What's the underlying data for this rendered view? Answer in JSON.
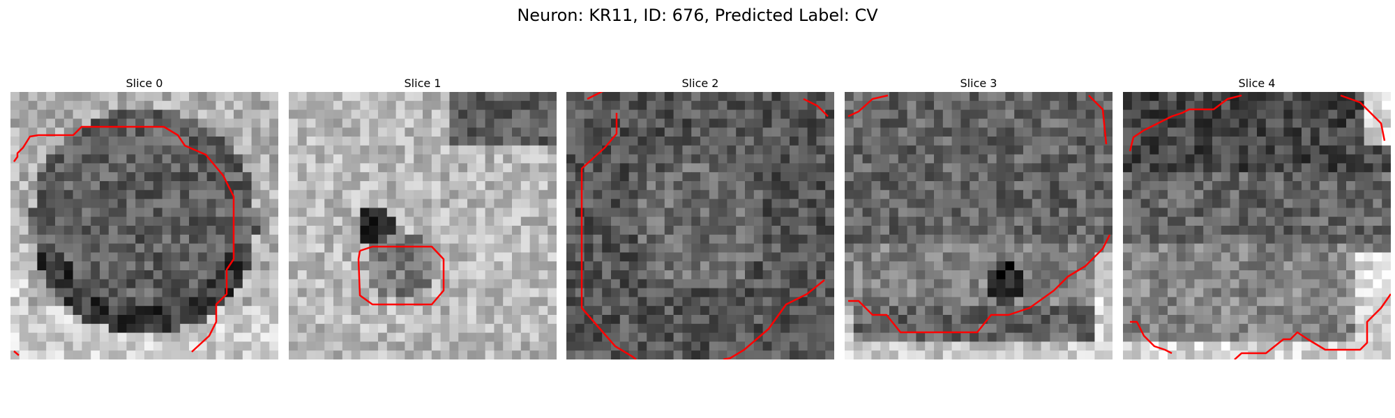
{
  "figure": {
    "title": "Neuron: KR11, ID: 676, Predicted Label: CV"
  },
  "slices": [
    {
      "title": "Slice 0"
    },
    {
      "title": "Slice 1"
    },
    {
      "title": "Slice 2"
    },
    {
      "title": "Slice 3"
    },
    {
      "title": "Slice 4"
    }
  ],
  "colors": {
    "contour": "#ff0000"
  }
}
